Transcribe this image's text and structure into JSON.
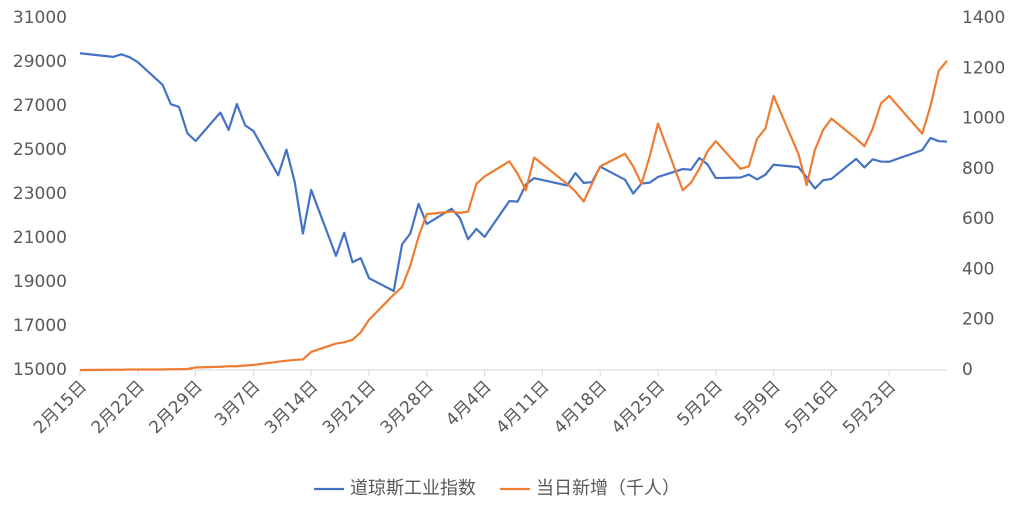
{
  "chart_data": {
    "type": "line",
    "x": [
      "2月15日",
      "2月19日",
      "2月20日",
      "2月21日",
      "2月22日",
      "2月25日",
      "2月26日",
      "2月27日",
      "2月28日",
      "2月29日",
      "3月3日",
      "3月4日",
      "3月5日",
      "3月6日",
      "3月7日",
      "3月10日",
      "3月11日",
      "3月12日",
      "3月13日",
      "3月14日",
      "3月17日",
      "3月18日",
      "3月19日",
      "3月20日",
      "3月21日",
      "3月24日",
      "3月25日",
      "3月26日",
      "3月27日",
      "3月28日",
      "3月31日",
      "4月1日",
      "4月2日",
      "4月3日",
      "4月4日",
      "4月7日",
      "4月8日",
      "4月9日",
      "4月10日",
      "4月14日",
      "4月15日",
      "4月16日",
      "4月17日",
      "4月18日",
      "4月21日",
      "4月22日",
      "4月23日",
      "4月24日",
      "4月25日",
      "4月28日",
      "4月29日",
      "4月30日",
      "5月1日",
      "5月2日",
      "5月5日",
      "5月6日",
      "5月7日",
      "5月8日",
      "5月9日",
      "5月12日",
      "5月13日",
      "5月14日",
      "5月15日",
      "5月16日",
      "5月19日",
      "5月20日",
      "5月21日",
      "5月22日",
      "5月23日",
      "5月27日",
      "5月28日",
      "5月29日",
      "5月30日"
    ],
    "series": [
      {
        "name": "道琼斯工业指数",
        "color": "#4472c4",
        "axis": "y",
        "values": [
          29398,
          29232,
          29348,
          29219,
          28992,
          27961,
          27081,
          26957,
          25766,
          25409,
          26703,
          25917,
          27091,
          26121,
          25865,
          23851,
          25018,
          23553,
          21200,
          23185,
          20189,
          21237,
          19899,
          20087,
          19174,
          18592,
          20704,
          21200,
          22552,
          21637,
          22327,
          21917,
          20944,
          21413,
          21053,
          22680,
          22654,
          23434,
          23720,
          23390,
          23950,
          23505,
          23538,
          24242,
          23650,
          23019,
          23475,
          23516,
          23775,
          24134,
          24101,
          24634,
          24346,
          23724,
          23750,
          23883,
          23664,
          23875,
          24331,
          24222,
          23765,
          23248,
          23625,
          23685,
          24597,
          24207,
          24576,
          24474,
          24465,
          24995,
          25548,
          25401,
          25383
        ]
      },
      {
        "name": "当日新增（千人）",
        "color": "#ed7d31",
        "axis": "y2",
        "values": [
          0,
          1,
          1,
          2,
          2,
          2,
          3,
          3,
          4,
          10,
          13,
          15,
          15,
          18,
          20,
          33,
          37,
          40,
          42,
          72,
          105,
          110,
          120,
          150,
          200,
          300,
          330,
          415,
          530,
          620,
          630,
          625,
          630,
          740,
          770,
          830,
          780,
          715,
          845,
          740,
          710,
          670,
          740,
          810,
          860,
          810,
          740,
          850,
          980,
          715,
          745,
          800,
          870,
          910,
          800,
          810,
          920,
          960,
          1090,
          860,
          735,
          875,
          955,
          1000,
          920,
          890,
          960,
          1060,
          1090,
          940,
          1050,
          1190,
          1230
        ]
      }
    ],
    "xlim": [
      "2月15日",
      "5月30日"
    ],
    "xticks": [
      "2月15日",
      "2月22日",
      "2月29日",
      "3月7日",
      "3月14日",
      "3月21日",
      "3月28日",
      "4月4日",
      "4月11日",
      "4月18日",
      "4月25日",
      "5月2日",
      "5月9日",
      "5月16日",
      "5月23日"
    ],
    "ylim": [
      15000,
      31000
    ],
    "yticks": [
      15000,
      17000,
      19000,
      21000,
      23000,
      25000,
      27000,
      29000,
      31000
    ],
    "y2lim": [
      0,
      1400
    ],
    "y2ticks": [
      0,
      200,
      400,
      600,
      800,
      1000,
      1200,
      1400
    ],
    "legend": "bottom"
  }
}
